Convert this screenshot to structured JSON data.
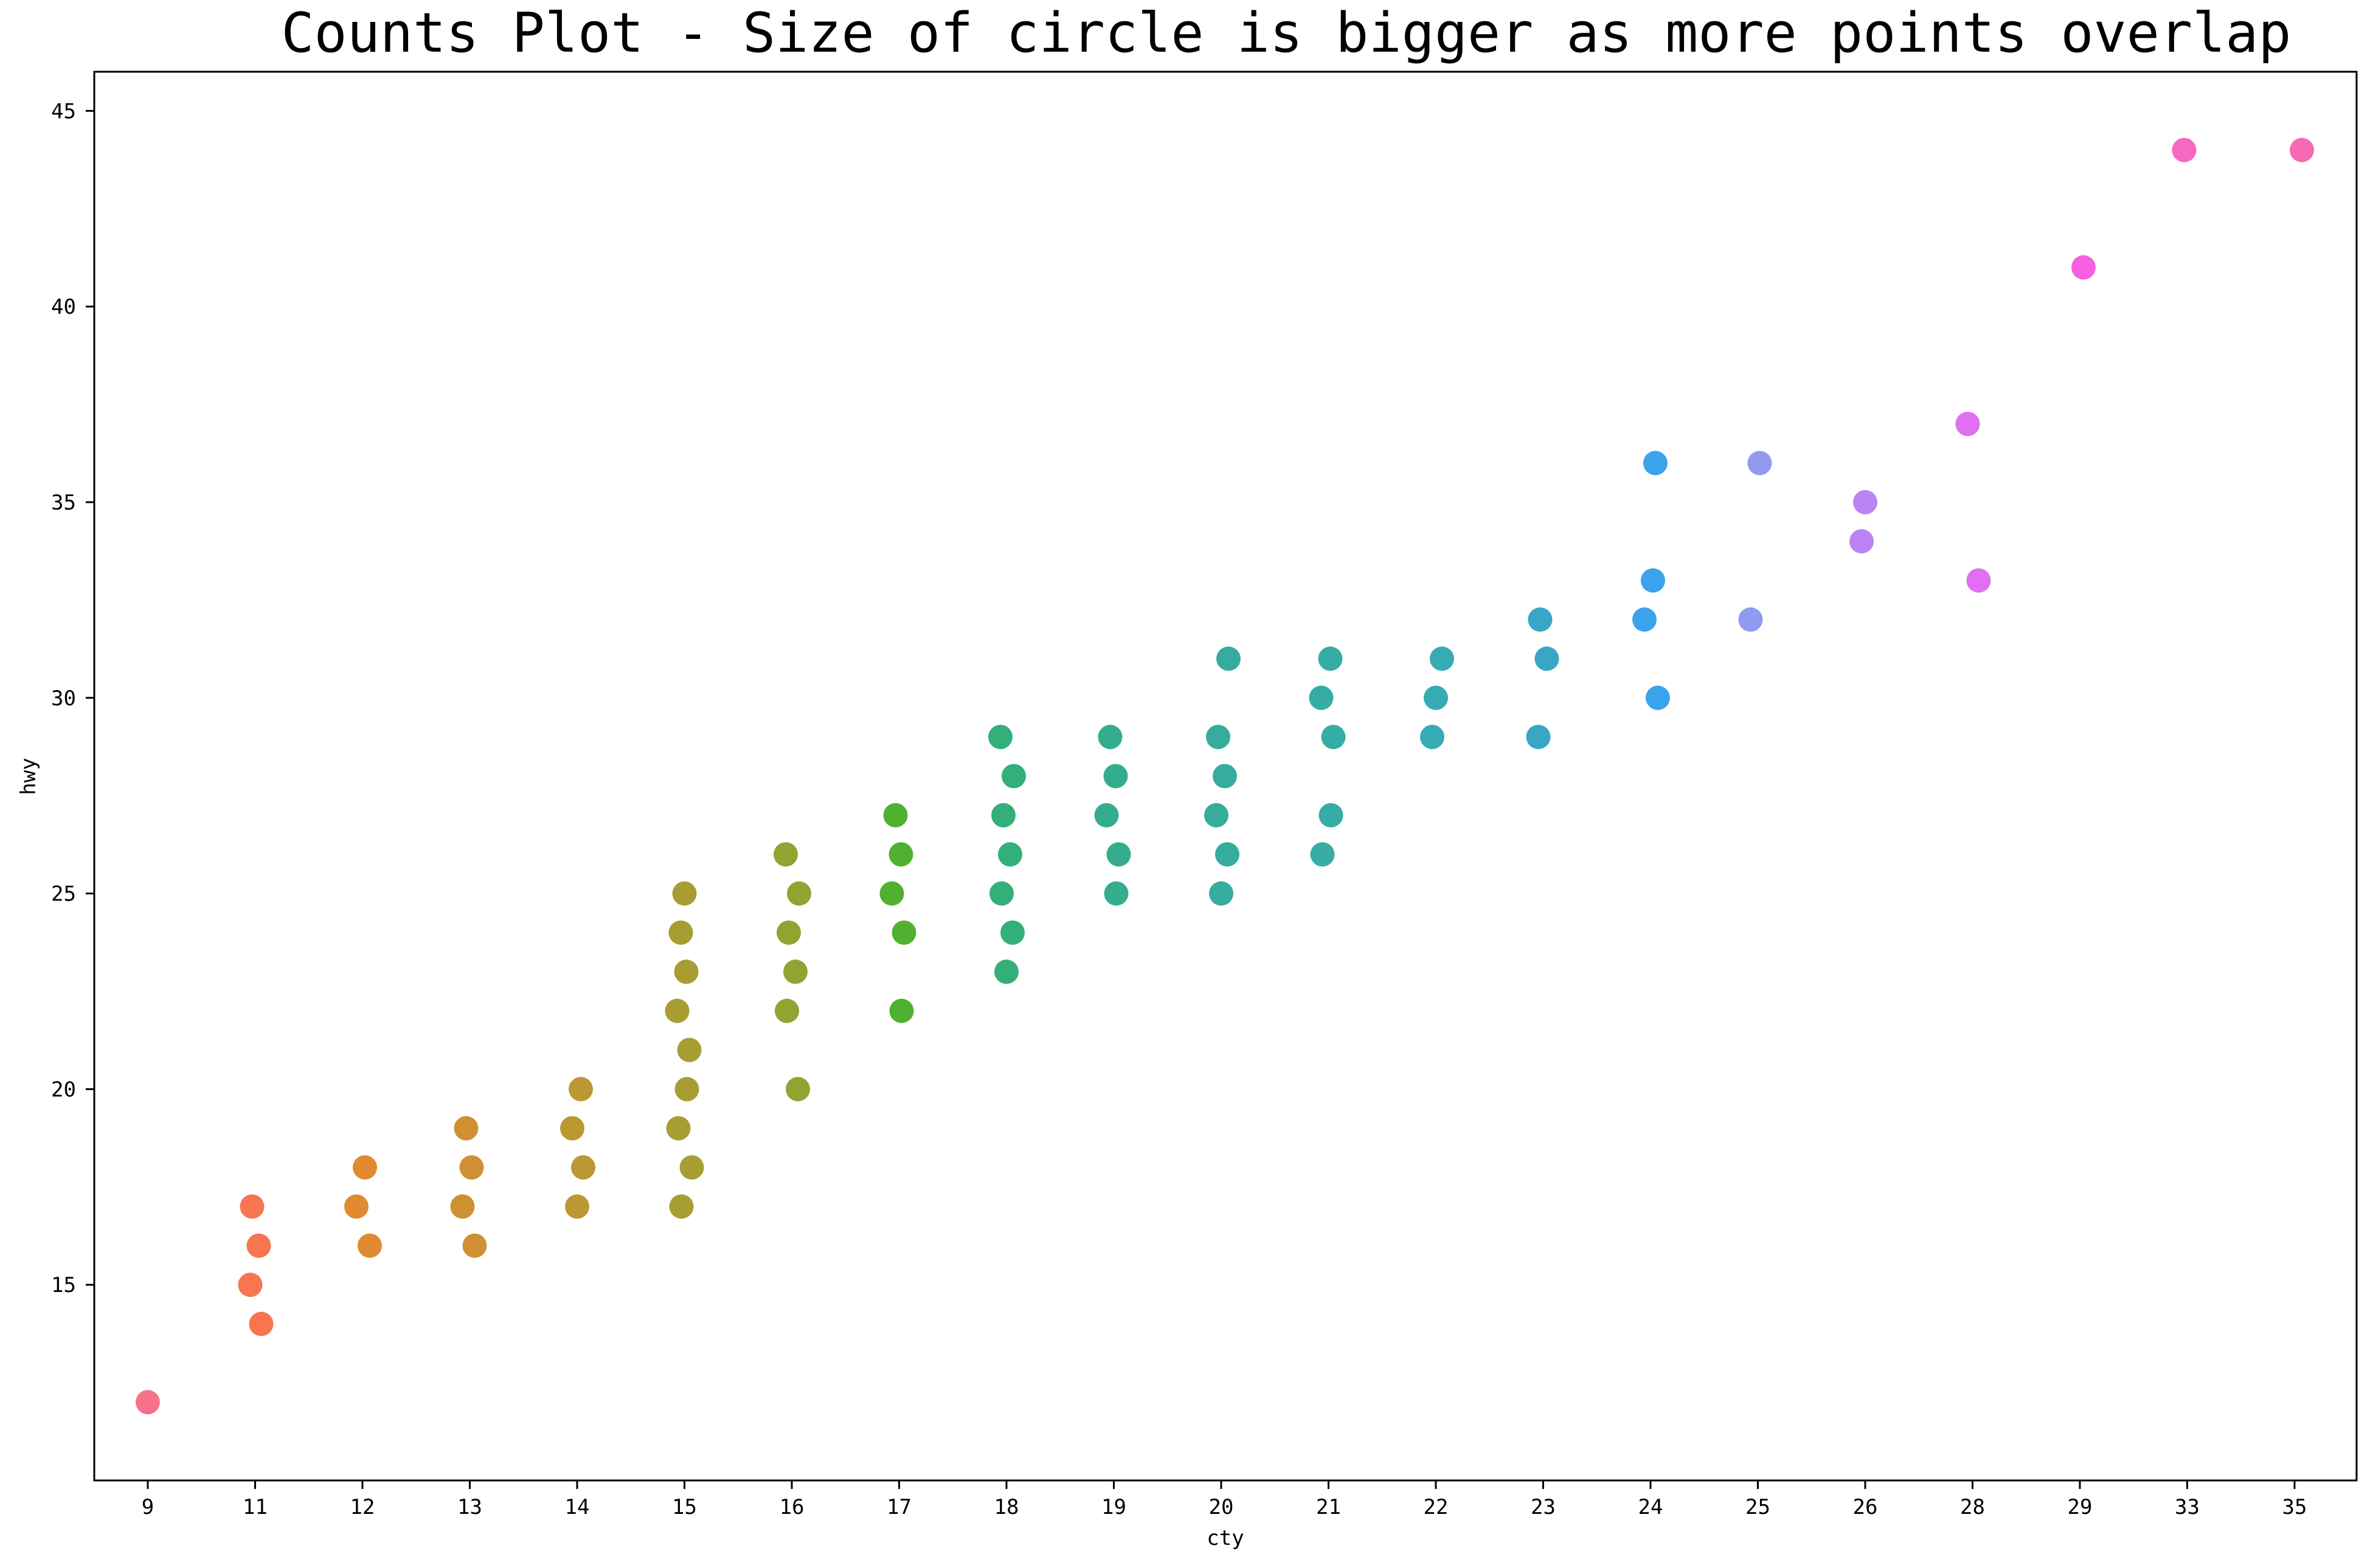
{
  "chart_data": {
    "type": "scatter",
    "title": "Counts Plot - Size of circle is bigger as more points overlap",
    "xlabel": "cty",
    "ylabel": "hwy",
    "x_axis_kind": "categorical",
    "categories": [
      "9",
      "11",
      "12",
      "13",
      "14",
      "15",
      "16",
      "17",
      "18",
      "19",
      "20",
      "21",
      "22",
      "23",
      "24",
      "25",
      "26",
      "28",
      "29",
      "33",
      "35"
    ],
    "ylim": [
      10,
      46
    ],
    "yticks": [
      15,
      20,
      25,
      30,
      35,
      40,
      45
    ],
    "grid": false,
    "legend": "none",
    "colors": {
      "9": "#f77189",
      "11": "#f7754f",
      "12": "#e18a31",
      "13": "#ce9032",
      "14": "#bb9832",
      "15": "#a79d32",
      "16": "#90a432",
      "17": "#50b131",
      "18": "#33b07a",
      "19": "#34ad8f",
      "20": "#35ac9e",
      "21": "#36ada4",
      "22": "#37abb4",
      "23": "#38a7c5",
      "24": "#3ba3ec",
      "25": "#8e9bf1",
      "26": "#bb83f4",
      "28": "#e16ff1",
      "29": "#f561dd",
      "33": "#f668c2",
      "35": "#f56ab0"
    },
    "points": [
      {
        "cty": "9",
        "hwy": 12
      },
      {
        "cty": "11",
        "hwy": 14
      },
      {
        "cty": "11",
        "hwy": 15
      },
      {
        "cty": "11",
        "hwy": 16
      },
      {
        "cty": "11",
        "hwy": 17
      },
      {
        "cty": "12",
        "hwy": 16
      },
      {
        "cty": "12",
        "hwy": 17
      },
      {
        "cty": "12",
        "hwy": 18
      },
      {
        "cty": "13",
        "hwy": 16
      },
      {
        "cty": "13",
        "hwy": 17
      },
      {
        "cty": "13",
        "hwy": 18
      },
      {
        "cty": "13",
        "hwy": 19
      },
      {
        "cty": "14",
        "hwy": 17
      },
      {
        "cty": "14",
        "hwy": 18
      },
      {
        "cty": "14",
        "hwy": 19
      },
      {
        "cty": "14",
        "hwy": 20
      },
      {
        "cty": "15",
        "hwy": 17
      },
      {
        "cty": "15",
        "hwy": 18
      },
      {
        "cty": "15",
        "hwy": 19
      },
      {
        "cty": "15",
        "hwy": 20
      },
      {
        "cty": "15",
        "hwy": 21
      },
      {
        "cty": "15",
        "hwy": 22
      },
      {
        "cty": "15",
        "hwy": 23
      },
      {
        "cty": "15",
        "hwy": 24
      },
      {
        "cty": "15",
        "hwy": 25
      },
      {
        "cty": "16",
        "hwy": 20
      },
      {
        "cty": "16",
        "hwy": 22
      },
      {
        "cty": "16",
        "hwy": 23
      },
      {
        "cty": "16",
        "hwy": 24
      },
      {
        "cty": "16",
        "hwy": 25
      },
      {
        "cty": "16",
        "hwy": 26
      },
      {
        "cty": "17",
        "hwy": 22
      },
      {
        "cty": "17",
        "hwy": 24
      },
      {
        "cty": "17",
        "hwy": 25
      },
      {
        "cty": "17",
        "hwy": 26
      },
      {
        "cty": "17",
        "hwy": 27
      },
      {
        "cty": "18",
        "hwy": 23
      },
      {
        "cty": "18",
        "hwy": 24
      },
      {
        "cty": "18",
        "hwy": 25
      },
      {
        "cty": "18",
        "hwy": 26
      },
      {
        "cty": "18",
        "hwy": 27
      },
      {
        "cty": "18",
        "hwy": 28
      },
      {
        "cty": "18",
        "hwy": 29
      },
      {
        "cty": "19",
        "hwy": 25
      },
      {
        "cty": "19",
        "hwy": 26
      },
      {
        "cty": "19",
        "hwy": 27
      },
      {
        "cty": "19",
        "hwy": 28
      },
      {
        "cty": "19",
        "hwy": 29
      },
      {
        "cty": "20",
        "hwy": 25
      },
      {
        "cty": "20",
        "hwy": 26
      },
      {
        "cty": "20",
        "hwy": 27
      },
      {
        "cty": "20",
        "hwy": 28
      },
      {
        "cty": "20",
        "hwy": 29
      },
      {
        "cty": "20",
        "hwy": 31
      },
      {
        "cty": "21",
        "hwy": 26
      },
      {
        "cty": "21",
        "hwy": 27
      },
      {
        "cty": "21",
        "hwy": 29
      },
      {
        "cty": "21",
        "hwy": 30
      },
      {
        "cty": "21",
        "hwy": 31
      },
      {
        "cty": "22",
        "hwy": 29
      },
      {
        "cty": "22",
        "hwy": 30
      },
      {
        "cty": "22",
        "hwy": 31
      },
      {
        "cty": "23",
        "hwy": 29
      },
      {
        "cty": "23",
        "hwy": 31
      },
      {
        "cty": "23",
        "hwy": 32
      },
      {
        "cty": "24",
        "hwy": 30
      },
      {
        "cty": "24",
        "hwy": 32
      },
      {
        "cty": "24",
        "hwy": 33
      },
      {
        "cty": "24",
        "hwy": 36
      },
      {
        "cty": "25",
        "hwy": 32
      },
      {
        "cty": "25",
        "hwy": 36
      },
      {
        "cty": "26",
        "hwy": 34
      },
      {
        "cty": "26",
        "hwy": 35
      },
      {
        "cty": "28",
        "hwy": 33
      },
      {
        "cty": "28",
        "hwy": 37
      },
      {
        "cty": "29",
        "hwy": 41
      },
      {
        "cty": "33",
        "hwy": 44
      },
      {
        "cty": "35",
        "hwy": 44
      }
    ]
  }
}
